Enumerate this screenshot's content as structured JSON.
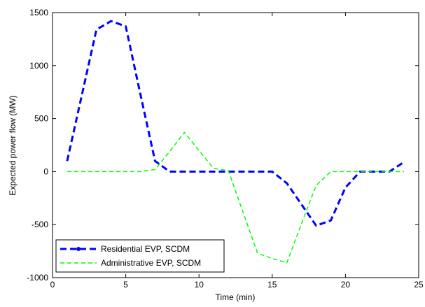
{
  "chart_data": {
    "type": "line",
    "xlabel": "Time (min)",
    "ylabel": "Expected power flow (MW)",
    "x": [
      1,
      2,
      3,
      4,
      5,
      6,
      7,
      8,
      9,
      10,
      11,
      12,
      13,
      14,
      15,
      16,
      17,
      18,
      19,
      20,
      21,
      22,
      23,
      24
    ],
    "series": [
      {
        "name": "Residential EVP, SCDM",
        "color": "#0000ff",
        "values": [
          100,
          720,
          1340,
          1420,
          1370,
          730,
          100,
          0,
          0,
          0,
          0,
          0,
          0,
          0,
          0,
          -110,
          -310,
          -510,
          -460,
          -150,
          0,
          0,
          0,
          90
        ]
      },
      {
        "name": "Administrative EVP, SCDM",
        "color": "#00ff00",
        "values": [
          0,
          0,
          0,
          0,
          0,
          0,
          20,
          190,
          370,
          200,
          30,
          10,
          -380,
          -770,
          -820,
          -860,
          -490,
          -130,
          0,
          0,
          0,
          0,
          0,
          0
        ]
      }
    ],
    "xlim": [
      0,
      25
    ],
    "xticks": [
      0,
      5,
      10,
      15,
      20,
      25
    ],
    "ylim": [
      -1000,
      1500
    ],
    "yticks": [
      -1000,
      -500,
      0,
      500,
      1000,
      1500
    ],
    "grid": false,
    "legend": "lower left"
  }
}
